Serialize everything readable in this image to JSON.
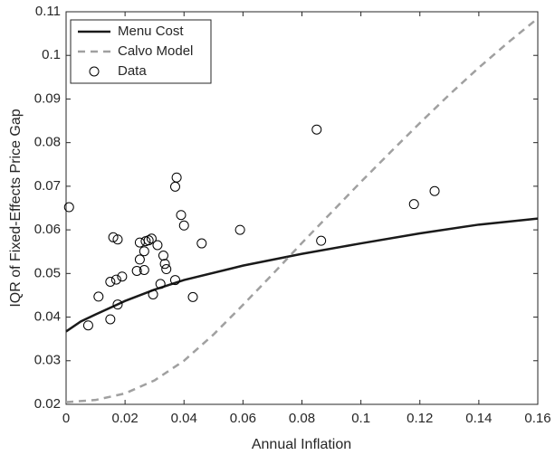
{
  "chart_data": {
    "type": "line",
    "xlabel": "Annual Inflation",
    "ylabel": "IQR of Fixed-Effects Price Gap",
    "xlim": [
      0,
      0.16
    ],
    "ylim": [
      0.02,
      0.11
    ],
    "xticks": [
      0,
      0.02,
      0.04,
      0.06,
      0.08,
      0.1,
      0.12,
      0.14,
      0.16
    ],
    "yticks": [
      0.02,
      0.03,
      0.04,
      0.05,
      0.06,
      0.07,
      0.08,
      0.09,
      0.1,
      0.11
    ],
    "legend": "upper-left",
    "series": [
      {
        "name": "Menu Cost",
        "color": "#1a1a1a",
        "mode": "line",
        "dash": false,
        "x": [
          0,
          0.005,
          0.01,
          0.02,
          0.03,
          0.04,
          0.06,
          0.08,
          0.1,
          0.12,
          0.14,
          0.16
        ],
        "values": [
          0.0367,
          0.039,
          0.0406,
          0.0437,
          0.0463,
          0.0485,
          0.0518,
          0.0545,
          0.0569,
          0.0592,
          0.0612,
          0.0626
        ]
      },
      {
        "name": "Calvo Model",
        "color": "#a0a0a0",
        "mode": "line",
        "dash": true,
        "x": [
          0,
          0.01,
          0.02,
          0.03,
          0.04,
          0.05,
          0.06,
          0.07,
          0.08,
          0.09,
          0.1,
          0.11,
          0.12,
          0.13,
          0.14,
          0.15,
          0.16
        ],
        "values": [
          0.0205,
          0.021,
          0.0225,
          0.0255,
          0.03,
          0.036,
          0.0428,
          0.0498,
          0.057,
          0.064,
          0.071,
          0.0778,
          0.0845,
          0.091,
          0.0972,
          0.103,
          0.1085
        ]
      },
      {
        "name": "Data",
        "color": "#000000",
        "mode": "markers",
        "dash": false,
        "x": [
          0.001,
          0.0075,
          0.011,
          0.015,
          0.015,
          0.016,
          0.017,
          0.0175,
          0.0175,
          0.019,
          0.024,
          0.025,
          0.025,
          0.0265,
          0.0265,
          0.027,
          0.028,
          0.029,
          0.0295,
          0.031,
          0.032,
          0.033,
          0.0335,
          0.034,
          0.037,
          0.0375,
          0.037,
          0.039,
          0.04,
          0.043,
          0.046,
          0.059,
          0.085,
          0.0865,
          0.118,
          0.125
        ],
        "values": [
          0.0652,
          0.0381,
          0.0447,
          0.0395,
          0.0481,
          0.0583,
          0.0486,
          0.0578,
          0.0429,
          0.0493,
          0.0506,
          0.0571,
          0.0532,
          0.0508,
          0.0551,
          0.0574,
          0.0576,
          0.058,
          0.0452,
          0.0565,
          0.0476,
          0.0541,
          0.0522,
          0.051,
          0.0699,
          0.072,
          0.0485,
          0.0634,
          0.061,
          0.0446,
          0.0569,
          0.06,
          0.083,
          0.0575,
          0.0659,
          0.0689
        ]
      }
    ]
  }
}
